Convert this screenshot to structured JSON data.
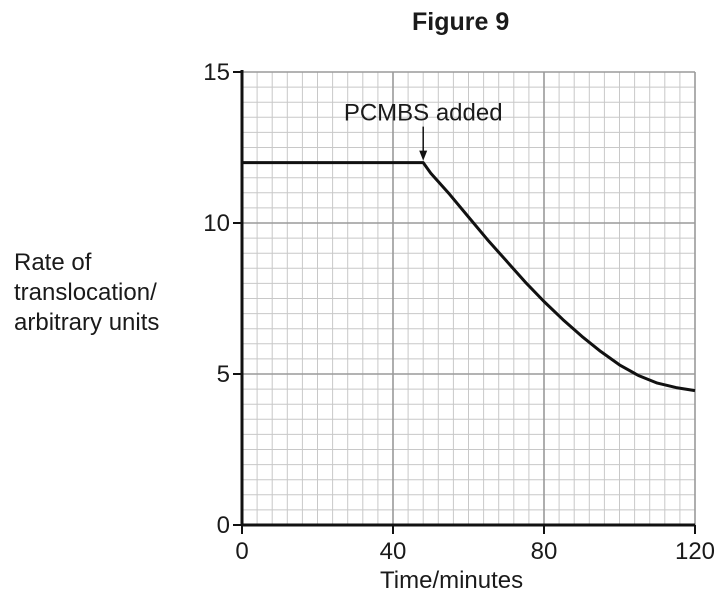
{
  "figure_title": "Figure 9",
  "chart_data": {
    "type": "line",
    "title": "Figure 9",
    "xlabel": "Time/minutes",
    "ylabel_lines": [
      "Rate of",
      "translocation/",
      "arbitrary units"
    ],
    "xlim": [
      0,
      120
    ],
    "ylim": [
      0,
      15
    ],
    "xticks": [
      0,
      40,
      80,
      120
    ],
    "yticks": [
      0,
      5,
      10,
      15
    ],
    "grid": true,
    "minor_grid_step_x": 4,
    "minor_grid_step_y": 0.5,
    "series": [
      {
        "x": [
          0,
          48,
          50,
          55,
          60,
          65,
          70,
          75,
          80,
          85,
          90,
          95,
          100,
          105,
          110,
          115,
          120
        ],
        "y": [
          12,
          12,
          11.65,
          10.95,
          10.2,
          9.45,
          8.75,
          8.05,
          7.4,
          6.8,
          6.25,
          5.75,
          5.3,
          4.95,
          4.7,
          4.55,
          4.45
        ]
      }
    ],
    "annotations": [
      {
        "text": "PCMBS added",
        "x": 48,
        "y": 12
      }
    ],
    "colors": {
      "major_grid": "#9a9a9a",
      "minor_grid": "#c8c8c8",
      "line": "#111111",
      "axis": "#111111"
    }
  }
}
